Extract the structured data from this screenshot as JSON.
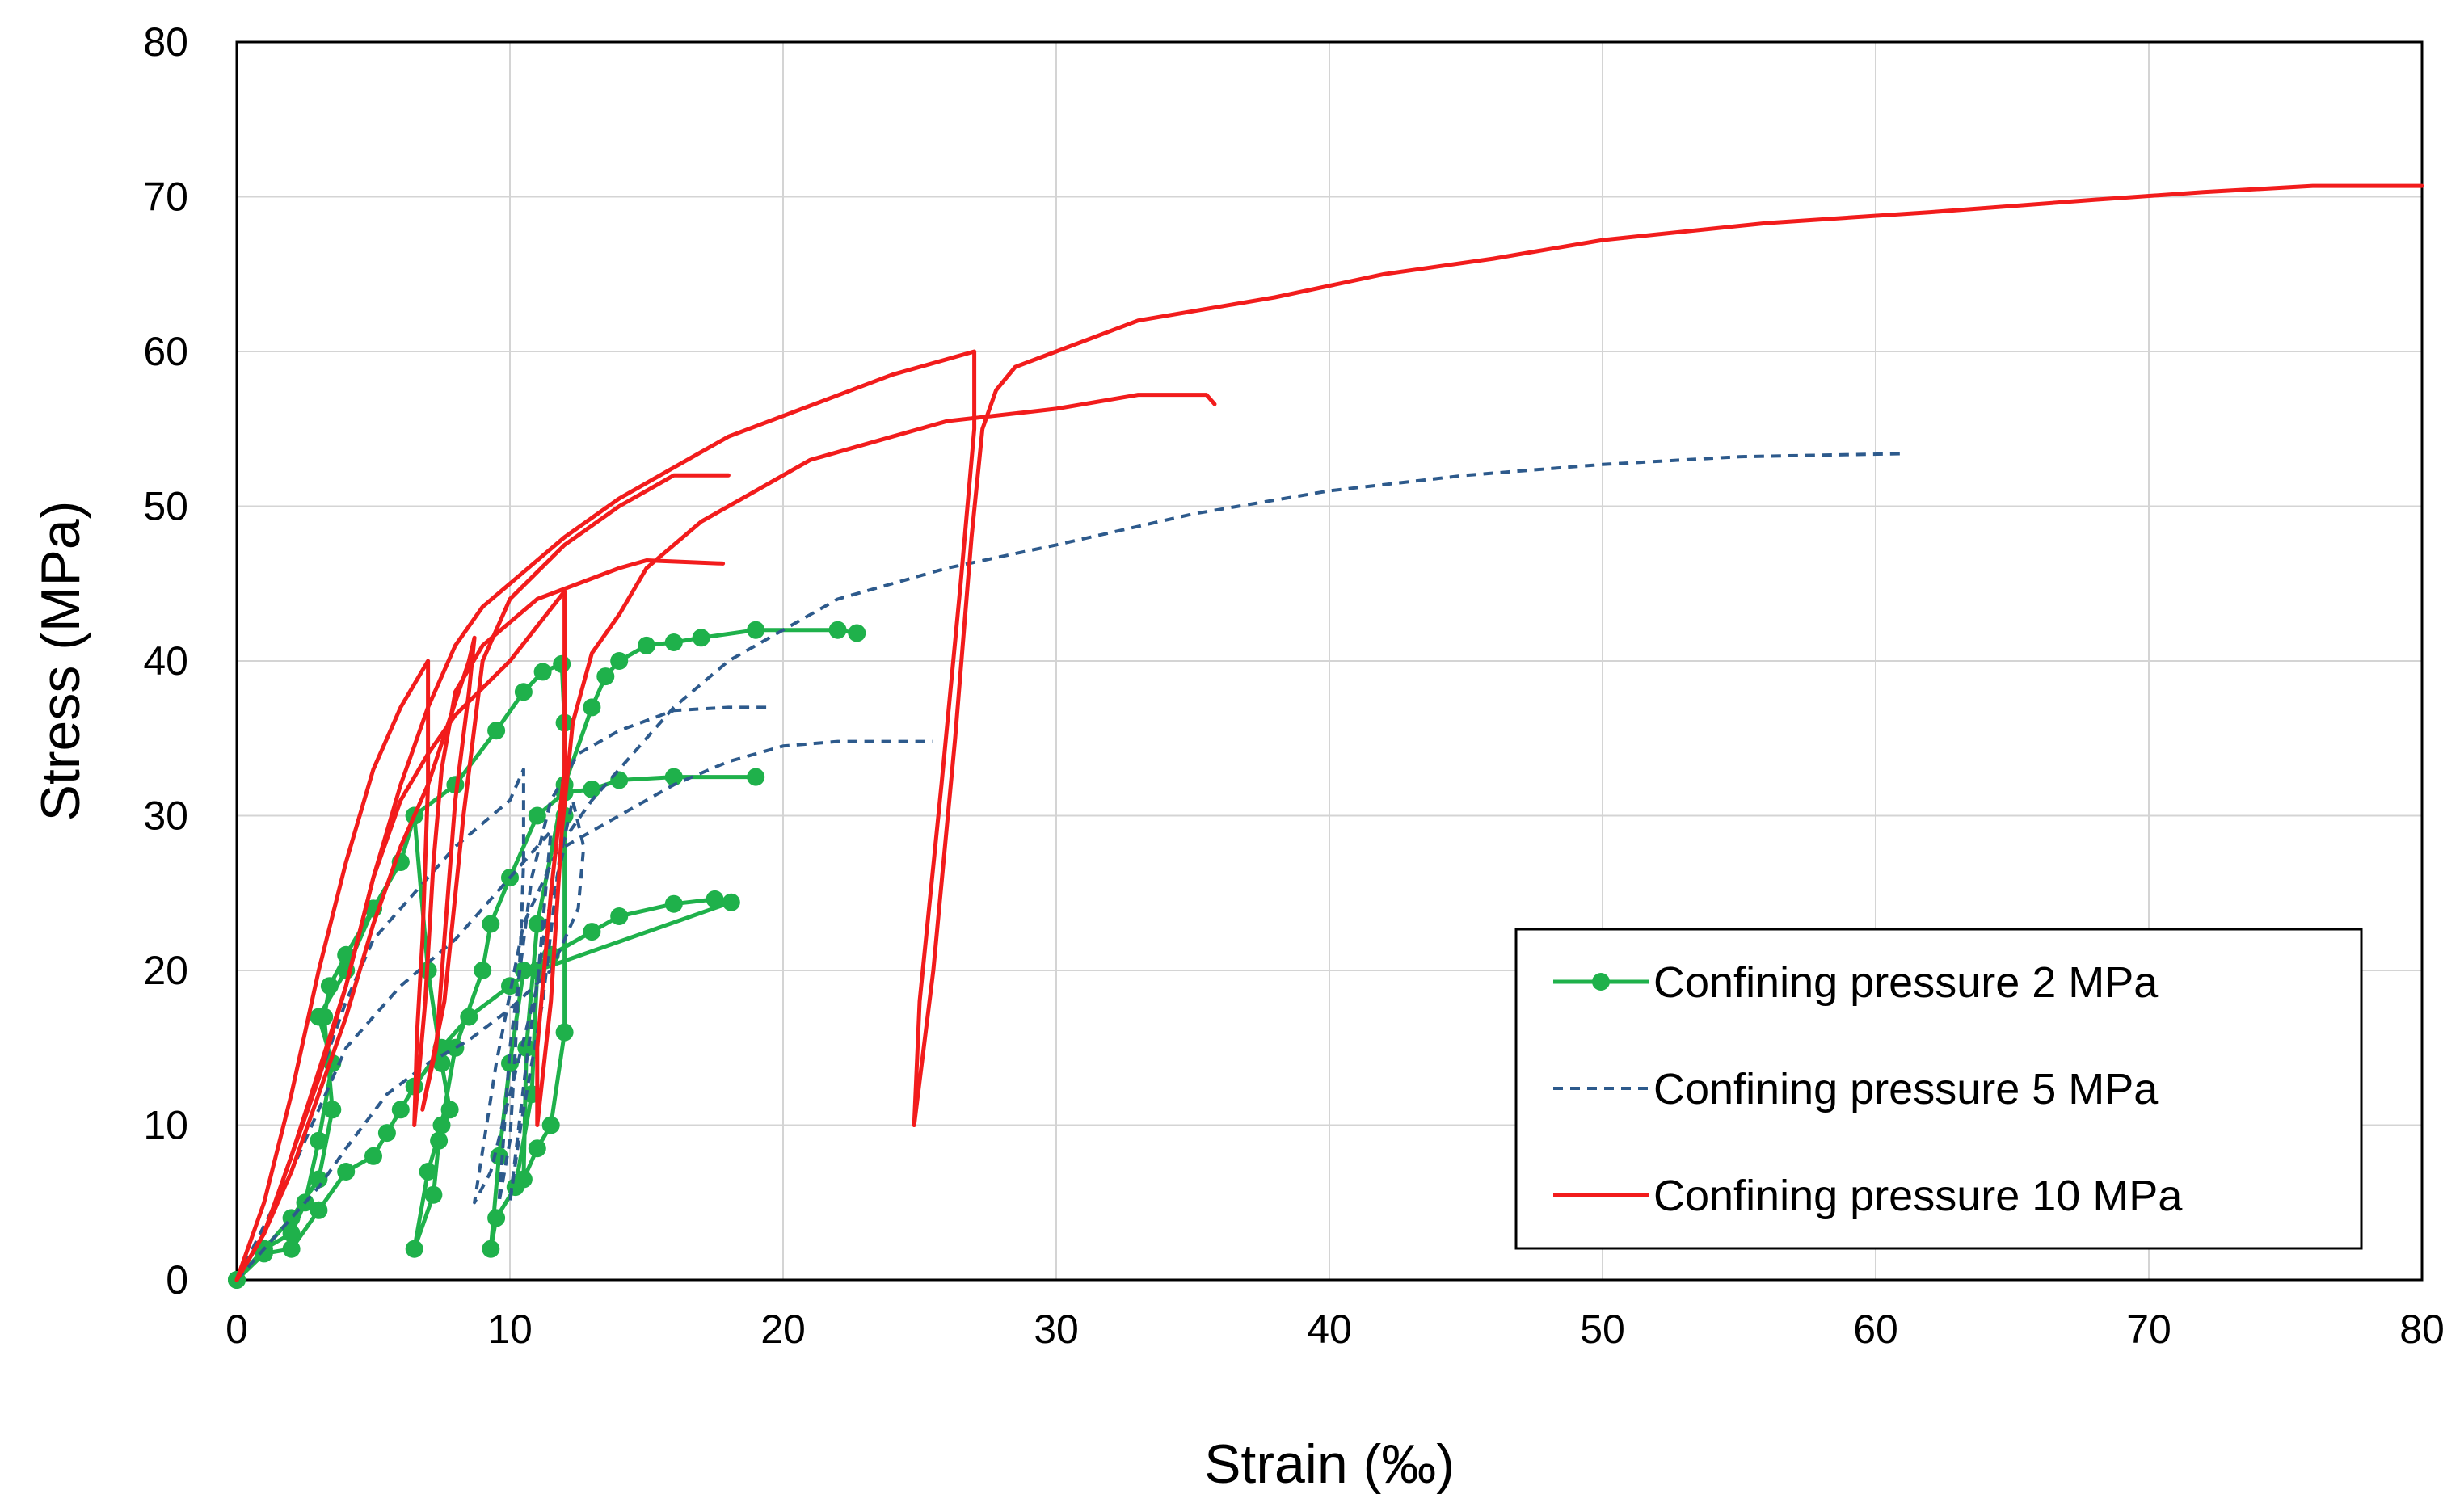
{
  "chart_data": {
    "type": "line",
    "title": "",
    "xlabel": "Strain (‰)",
    "ylabel": "Stress (MPa)",
    "xlim": [
      0,
      80
    ],
    "ylim": [
      0,
      80
    ],
    "xticks": [
      "0",
      "10",
      "20",
      "30",
      "40",
      "50",
      "60",
      "70",
      "80"
    ],
    "yticks": [
      "0",
      "10",
      "20",
      "30",
      "40",
      "50",
      "60",
      "70",
      "80"
    ],
    "grid": true,
    "legend_position": "bottom-right",
    "series": [
      {
        "name": "Confining pressure 2 MPa",
        "color": "#1fb14b",
        "style": "solid-marker",
        "curves": [
          [
            [
              0,
              0
            ],
            [
              1,
              2
            ],
            [
              2,
              3
            ],
            [
              2.5,
              5
            ],
            [
              3,
              9
            ],
            [
              3.5,
              14
            ],
            [
              3,
              17
            ],
            [
              4,
              20
            ],
            [
              5,
              24
            ],
            [
              6,
              27
            ],
            [
              6.5,
              30
            ],
            [
              8,
              32
            ],
            [
              9.5,
              35.5
            ],
            [
              10.5,
              38
            ],
            [
              11.2,
              39.3
            ],
            [
              11.9,
              39.8
            ],
            [
              12,
              36
            ],
            [
              12,
              30
            ],
            [
              12,
              16
            ],
            [
              11.5,
              10
            ],
            [
              11,
              8.5
            ],
            [
              10.5,
              6.5
            ],
            [
              10.6,
              15
            ],
            [
              11,
              23
            ],
            [
              12,
              32
            ],
            [
              13,
              37
            ],
            [
              13.5,
              39
            ],
            [
              14,
              40
            ],
            [
              15,
              41
            ],
            [
              16,
              41.2
            ],
            [
              17,
              41.5
            ],
            [
              19,
              42
            ],
            [
              22,
              42
            ],
            [
              22.7,
              41.8
            ]
          ],
          [
            [
              0,
              0
            ],
            [
              1,
              2
            ],
            [
              2,
              4
            ],
            [
              3,
              6.5
            ],
            [
              3.5,
              11
            ],
            [
              3.2,
              17
            ],
            [
              3.4,
              19
            ],
            [
              4,
              21
            ],
            [
              5,
              24
            ],
            [
              6,
              27
            ],
            [
              6.5,
              30
            ],
            [
              7,
              20
            ],
            [
              7.5,
              14
            ],
            [
              7.8,
              11
            ],
            [
              7.4,
              9
            ],
            [
              7.2,
              5.5
            ],
            [
              6.5,
              2
            ],
            [
              7,
              7
            ],
            [
              7.5,
              10
            ],
            [
              8,
              15
            ],
            [
              9,
              20
            ],
            [
              9.3,
              23
            ],
            [
              10,
              26
            ],
            [
              11,
              30
            ],
            [
              12,
              31.5
            ],
            [
              13,
              31.7
            ],
            [
              14,
              32.3
            ],
            [
              16,
              32.5
            ],
            [
              19,
              32.5
            ]
          ],
          [
            [
              0,
              0
            ],
            [
              1,
              1.7
            ],
            [
              2,
              2
            ],
            [
              3,
              4.5
            ],
            [
              4,
              7
            ],
            [
              5,
              8
            ],
            [
              5.5,
              9.5
            ],
            [
              6,
              11
            ],
            [
              6.5,
              12.5
            ],
            [
              7.5,
              15
            ],
            [
              8.5,
              17
            ],
            [
              10,
              19
            ],
            [
              11.5,
              21
            ],
            [
              13,
              22.5
            ],
            [
              14,
              23.5
            ],
            [
              16,
              24.3
            ],
            [
              17.5,
              24.6
            ],
            [
              18.1,
              24.4
            ],
            [
              11,
              20
            ],
            [
              10.8,
              12
            ],
            [
              10.2,
              6
            ],
            [
              9.5,
              4
            ],
            [
              9.3,
              2
            ],
            [
              9.6,
              8
            ],
            [
              10,
              14
            ],
            [
              10.5,
              20
            ]
          ]
        ]
      },
      {
        "name": "Confining pressure 5 MPa",
        "color": "#2d5a8c",
        "style": "dashed",
        "curves": [
          [
            [
              0,
              0
            ],
            [
              1,
              3
            ],
            [
              2,
              8
            ],
            [
              3,
              13
            ],
            [
              4,
              18
            ],
            [
              5,
              22
            ],
            [
              6.5,
              25
            ],
            [
              8,
              28
            ],
            [
              10,
              31
            ],
            [
              10.5,
              33
            ],
            [
              10.5,
              27
            ],
            [
              10.4,
              22
            ],
            [
              10.2,
              15
            ],
            [
              10,
              9
            ],
            [
              9.6,
              5
            ],
            [
              10,
              15
            ],
            [
              10.8,
              26
            ],
            [
              11.5,
              31
            ],
            [
              12.5,
              34
            ],
            [
              14,
              35.5
            ],
            [
              16,
              36.8
            ],
            [
              18,
              37
            ],
            [
              19.5,
              37
            ]
          ],
          [
            [
              0,
              0
            ],
            [
              1,
              2
            ],
            [
              2,
              4
            ],
            [
              3,
              6
            ],
            [
              4,
              8.5
            ],
            [
              5.5,
              12
            ],
            [
              7,
              14
            ],
            [
              8.5,
              15.5
            ],
            [
              10,
              17.5
            ],
            [
              11.5,
              20
            ],
            [
              12.5,
              24
            ],
            [
              12.7,
              28
            ],
            [
              12.3,
              31
            ],
            [
              11.8,
              27
            ],
            [
              11.2,
              18
            ],
            [
              10.4,
              10
            ],
            [
              10,
              5
            ],
            [
              10.6,
              14
            ],
            [
              11.3,
              23
            ],
            [
              12,
              28
            ],
            [
              14,
              30
            ],
            [
              16,
              32
            ],
            [
              18,
              33.5
            ],
            [
              20,
              34.5
            ],
            [
              22,
              34.8
            ],
            [
              25.5,
              34.8
            ]
          ],
          [
            [
              0,
              0
            ],
            [
              2,
              7
            ],
            [
              3,
              11
            ],
            [
              4,
              15
            ],
            [
              6,
              19
            ],
            [
              8,
              22
            ],
            [
              10,
              26
            ],
            [
              11,
              28
            ],
            [
              11.5,
              29
            ],
            [
              11,
              19
            ],
            [
              10,
              12
            ],
            [
              9.3,
              7
            ],
            [
              8.7,
              5
            ],
            [
              9.5,
              14
            ],
            [
              10.5,
              23
            ],
            [
              11.8,
              28
            ],
            [
              13,
              31
            ],
            [
              14,
              33
            ],
            [
              16,
              37
            ],
            [
              18,
              40
            ],
            [
              20,
              42
            ],
            [
              22,
              44
            ],
            [
              26,
              46
            ],
            [
              30,
              47.5
            ],
            [
              35,
              49.5
            ],
            [
              40,
              51
            ],
            [
              45,
              52
            ],
            [
              50,
              52.7
            ],
            [
              55,
              53.2
            ],
            [
              61,
              53.4
            ]
          ]
        ]
      },
      {
        "name": "Confining pressure 10 MPa",
        "color": "#f21c1c",
        "style": "solid",
        "curves": [
          [
            [
              0,
              0
            ],
            [
              1,
              5
            ],
            [
              2,
              12
            ],
            [
              3,
              20
            ],
            [
              4,
              27
            ],
            [
              5,
              33
            ],
            [
              6,
              37
            ],
            [
              7,
              40
            ],
            [
              7,
              32
            ],
            [
              6.8,
              22
            ],
            [
              6.6,
              16
            ],
            [
              6.5,
              10
            ],
            [
              6.9,
              18
            ],
            [
              7.2,
              27
            ],
            [
              7.5,
              33
            ],
            [
              8,
              38
            ],
            [
              9,
              41
            ],
            [
              11,
              44
            ],
            [
              14,
              46
            ],
            [
              15,
              46.5
            ],
            [
              17.8,
              46.3
            ]
          ],
          [
            [
              0,
              0
            ],
            [
              1,
              3
            ],
            [
              2,
              7
            ],
            [
              3,
              12
            ],
            [
              4,
              17
            ],
            [
              5,
              23
            ],
            [
              6,
              28
            ],
            [
              7,
              32
            ],
            [
              8.5,
              40
            ],
            [
              8.7,
              41.5
            ],
            [
              8.5,
              38
            ],
            [
              8,
              31
            ],
            [
              7.6,
              22
            ],
            [
              7.3,
              15
            ],
            [
              6.8,
              11
            ],
            [
              7.6,
              18
            ],
            [
              8.3,
              30
            ],
            [
              9,
              40
            ],
            [
              10,
              44
            ],
            [
              12,
              47.5
            ],
            [
              14,
              50
            ],
            [
              15,
              51
            ],
            [
              16,
              52
            ],
            [
              18,
              52
            ]
          ],
          [
            [
              0,
              0
            ],
            [
              1,
              3
            ],
            [
              2,
              8
            ],
            [
              3,
              13
            ],
            [
              4,
              19
            ],
            [
              5,
              26
            ],
            [
              6,
              31
            ],
            [
              7,
              34
            ],
            [
              8,
              36.5
            ],
            [
              10,
              40
            ],
            [
              12,
              44.5
            ],
            [
              12,
              40
            ],
            [
              12,
              33
            ],
            [
              11.5,
              25
            ],
            [
              11,
              15
            ],
            [
              11,
              10
            ],
            [
              11.5,
              18
            ],
            [
              11.9,
              29
            ],
            [
              12.3,
              36
            ],
            [
              13,
              40.5
            ],
            [
              14,
              43
            ],
            [
              15,
              46
            ],
            [
              17,
              49
            ],
            [
              19,
              51
            ],
            [
              21,
              53
            ],
            [
              24,
              54.5
            ],
            [
              26,
              55.5
            ],
            [
              30,
              56.3
            ],
            [
              33,
              57.2
            ],
            [
              35.5,
              57.2
            ],
            [
              35.8,
              56.6
            ]
          ],
          [
            [
              0,
              0
            ],
            [
              1,
              3
            ],
            [
              2,
              8
            ],
            [
              4,
              19
            ],
            [
              5,
              26
            ],
            [
              6,
              32
            ],
            [
              7,
              37
            ],
            [
              8,
              41
            ],
            [
              9,
              43.5
            ],
            [
              10,
              45
            ],
            [
              11,
              46.5
            ],
            [
              12,
              48
            ],
            [
              14,
              50.5
            ],
            [
              16,
              52.5
            ],
            [
              18,
              54.5
            ],
            [
              21,
              56.5
            ],
            [
              24,
              58.5
            ],
            [
              27,
              60
            ],
            [
              27,
              55
            ],
            [
              26.5,
              45
            ],
            [
              25.8,
              32
            ],
            [
              25,
              18
            ],
            [
              24.8,
              10
            ],
            [
              25.5,
              20
            ],
            [
              26.3,
              35
            ],
            [
              26.9,
              48
            ],
            [
              27.3,
              55
            ],
            [
              27.8,
              57.5
            ],
            [
              28.5,
              59
            ],
            [
              30,
              60
            ],
            [
              33,
              62
            ],
            [
              38,
              63.5
            ],
            [
              42,
              65
            ],
            [
              46,
              66
            ],
            [
              50,
              67.2
            ],
            [
              56,
              68.3
            ],
            [
              62,
              69
            ],
            [
              68,
              69.8
            ],
            [
              72,
              70.3
            ],
            [
              76,
              70.7
            ],
            [
              80,
              70.7
            ]
          ]
        ]
      }
    ]
  }
}
